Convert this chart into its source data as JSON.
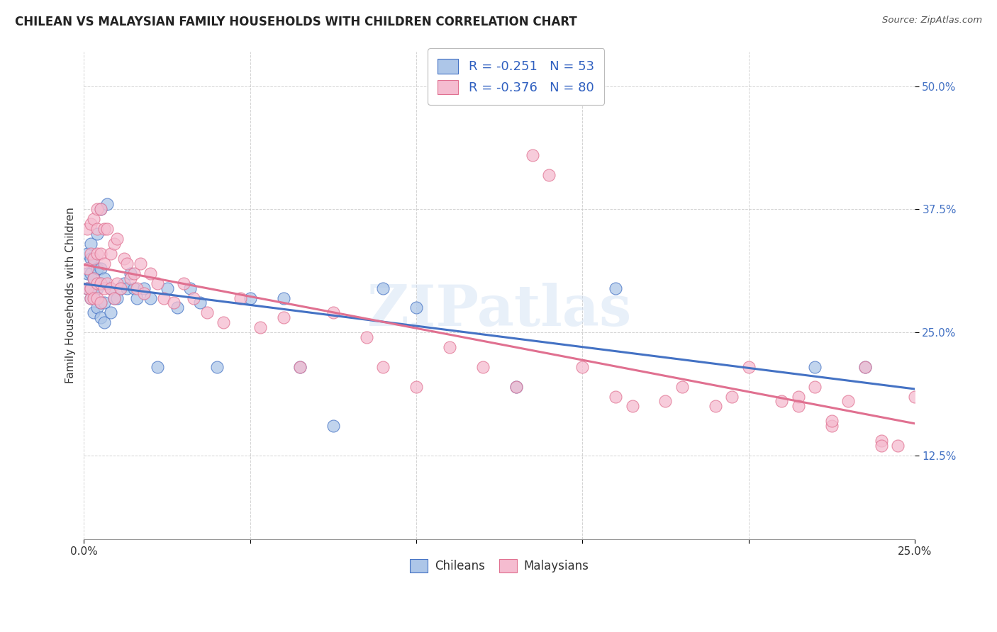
{
  "title": "CHILEAN VS MALAYSIAN FAMILY HOUSEHOLDS WITH CHILDREN CORRELATION CHART",
  "source": "Source: ZipAtlas.com",
  "ylabel": "Family Households with Children",
  "watermark": "ZIPatlas",
  "chileans_R": "-0.251",
  "chileans_N": "53",
  "malaysians_R": "-0.376",
  "malaysians_N": "80",
  "chileans_color": "#adc6e8",
  "malaysians_color": "#f5bcd0",
  "chileans_line_color": "#4472c4",
  "malaysians_line_color": "#e07090",
  "background_color": "#ffffff",
  "grid_color": "#c8c8c8",
  "title_color": "#222222",
  "legend_text_color": "#3060c0",
  "xlim": [
    0.0,
    0.25
  ],
  "ylim": [
    0.04,
    0.535
  ],
  "chileans_x": [
    0.001,
    0.001,
    0.001,
    0.002,
    0.002,
    0.002,
    0.002,
    0.002,
    0.003,
    0.003,
    0.003,
    0.003,
    0.004,
    0.004,
    0.004,
    0.004,
    0.005,
    0.005,
    0.005,
    0.005,
    0.005,
    0.006,
    0.006,
    0.006,
    0.007,
    0.008,
    0.008,
    0.009,
    0.01,
    0.011,
    0.012,
    0.013,
    0.014,
    0.015,
    0.016,
    0.018,
    0.02,
    0.022,
    0.025,
    0.028,
    0.032,
    0.035,
    0.04,
    0.05,
    0.06,
    0.065,
    0.075,
    0.09,
    0.1,
    0.13,
    0.16,
    0.22,
    0.235
  ],
  "chileans_y": [
    0.295,
    0.31,
    0.33,
    0.285,
    0.295,
    0.31,
    0.325,
    0.34,
    0.27,
    0.29,
    0.305,
    0.32,
    0.275,
    0.295,
    0.315,
    0.35,
    0.265,
    0.28,
    0.3,
    0.315,
    0.375,
    0.26,
    0.28,
    0.305,
    0.38,
    0.27,
    0.295,
    0.285,
    0.285,
    0.295,
    0.3,
    0.295,
    0.31,
    0.295,
    0.285,
    0.295,
    0.285,
    0.215,
    0.295,
    0.275,
    0.295,
    0.28,
    0.215,
    0.285,
    0.285,
    0.215,
    0.155,
    0.295,
    0.275,
    0.195,
    0.295,
    0.215,
    0.215
  ],
  "malaysians_x": [
    0.001,
    0.001,
    0.001,
    0.002,
    0.002,
    0.002,
    0.002,
    0.003,
    0.003,
    0.003,
    0.003,
    0.004,
    0.004,
    0.004,
    0.004,
    0.004,
    0.005,
    0.005,
    0.005,
    0.005,
    0.006,
    0.006,
    0.006,
    0.007,
    0.007,
    0.008,
    0.008,
    0.009,
    0.009,
    0.01,
    0.01,
    0.011,
    0.012,
    0.013,
    0.014,
    0.015,
    0.016,
    0.017,
    0.018,
    0.02,
    0.022,
    0.024,
    0.027,
    0.03,
    0.033,
    0.037,
    0.042,
    0.047,
    0.053,
    0.06,
    0.065,
    0.075,
    0.085,
    0.09,
    0.1,
    0.11,
    0.12,
    0.13,
    0.135,
    0.14,
    0.15,
    0.16,
    0.165,
    0.175,
    0.18,
    0.19,
    0.195,
    0.2,
    0.21,
    0.215,
    0.215,
    0.22,
    0.225,
    0.225,
    0.23,
    0.235,
    0.24,
    0.24,
    0.245,
    0.25
  ],
  "malaysians_y": [
    0.295,
    0.315,
    0.355,
    0.285,
    0.295,
    0.33,
    0.36,
    0.285,
    0.305,
    0.325,
    0.365,
    0.285,
    0.3,
    0.33,
    0.355,
    0.375,
    0.28,
    0.3,
    0.33,
    0.375,
    0.295,
    0.32,
    0.355,
    0.3,
    0.355,
    0.295,
    0.33,
    0.285,
    0.34,
    0.3,
    0.345,
    0.295,
    0.325,
    0.32,
    0.305,
    0.31,
    0.295,
    0.32,
    0.29,
    0.31,
    0.3,
    0.285,
    0.28,
    0.3,
    0.285,
    0.27,
    0.26,
    0.285,
    0.255,
    0.265,
    0.215,
    0.27,
    0.245,
    0.215,
    0.195,
    0.235,
    0.215,
    0.195,
    0.43,
    0.41,
    0.215,
    0.185,
    0.175,
    0.18,
    0.195,
    0.175,
    0.185,
    0.215,
    0.18,
    0.185,
    0.175,
    0.195,
    0.155,
    0.16,
    0.18,
    0.215,
    0.14,
    0.135,
    0.135,
    0.185
  ]
}
